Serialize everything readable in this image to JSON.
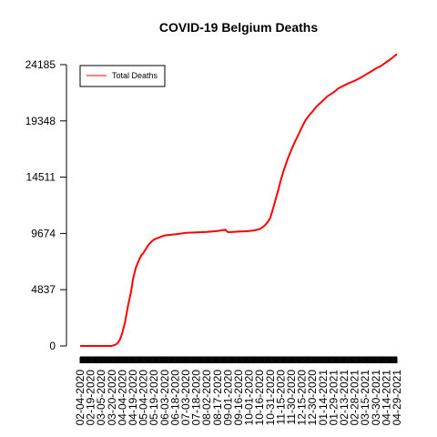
{
  "chart_data": {
    "type": "line",
    "title": "COVID-19 Belgium Deaths",
    "xlabel": "",
    "ylabel": "",
    "legend": {
      "placement": "top-left",
      "entries": [
        "Total Deaths"
      ]
    },
    "series_color": "#ff0000",
    "yticks": [
      0,
      4837,
      9674,
      14511,
      19348,
      24185
    ],
    "ylim": [
      0,
      24185
    ],
    "xlim": [
      "2020-02-04",
      "2021-04-29"
    ],
    "xtick_labels": [
      "02-04-2020",
      "02-19-2020",
      "03-05-2020",
      "03-20-2020",
      "04-04-2020",
      "04-19-2020",
      "05-04-2020",
      "05-19-2020",
      "06-03-2020",
      "06-18-2020",
      "07-03-2020",
      "07-18-2020",
      "08-02-2020",
      "08-17-2020",
      "09-01-2020",
      "09-16-2020",
      "10-01-2020",
      "10-16-2020",
      "10-31-2020",
      "11-15-2020",
      "11-30-2020",
      "12-15-2020",
      "12-30-2020",
      "01-14-2021",
      "01-29-2021",
      "02-13-2021",
      "02-28-2021",
      "03-15-2021",
      "03-30-2021",
      "04-14-2021",
      "04-29-2021"
    ],
    "series": [
      {
        "name": "Total Deaths",
        "x": [
          "2020-02-04",
          "2020-02-19",
          "2020-03-05",
          "2020-03-10",
          "2020-03-15",
          "2020-03-20",
          "2020-03-25",
          "2020-03-28",
          "2020-04-01",
          "2020-04-04",
          "2020-04-08",
          "2020-04-12",
          "2020-04-16",
          "2020-04-19",
          "2020-04-23",
          "2020-04-27",
          "2020-05-01",
          "2020-05-04",
          "2020-05-10",
          "2020-05-15",
          "2020-05-19",
          "2020-05-25",
          "2020-06-03",
          "2020-06-18",
          "2020-07-03",
          "2020-07-18",
          "2020-08-02",
          "2020-08-17",
          "2020-08-27",
          "2020-08-28",
          "2020-09-01",
          "2020-09-16",
          "2020-10-01",
          "2020-10-08",
          "2020-10-16",
          "2020-10-20",
          "2020-10-24",
          "2020-10-28",
          "2020-10-31",
          "2020-11-03",
          "2020-11-07",
          "2020-11-11",
          "2020-11-15",
          "2020-11-20",
          "2020-11-25",
          "2020-11-30",
          "2020-12-05",
          "2020-12-10",
          "2020-12-15",
          "2020-12-20",
          "2020-12-25",
          "2020-12-30",
          "2021-01-05",
          "2021-01-14",
          "2021-01-20",
          "2021-01-29",
          "2021-02-05",
          "2021-02-13",
          "2021-02-20",
          "2021-02-28",
          "2021-03-08",
          "2021-03-15",
          "2021-03-22",
          "2021-03-30",
          "2021-04-07",
          "2021-04-14",
          "2021-04-22",
          "2021-04-29"
        ],
        "y": [
          0,
          0,
          0,
          0,
          0,
          5,
          100,
          220,
          600,
          1150,
          2100,
          3450,
          4550,
          5700,
          6700,
          7300,
          7800,
          8000,
          8600,
          8950,
          9150,
          9300,
          9500,
          9600,
          9720,
          9760,
          9800,
          9880,
          9980,
          10000,
          9780,
          9830,
          9880,
          9930,
          10050,
          10200,
          10400,
          10700,
          11000,
          11600,
          12450,
          13300,
          14250,
          15250,
          16100,
          16850,
          17550,
          18150,
          18800,
          19400,
          19800,
          20150,
          20600,
          21100,
          21450,
          21800,
          22150,
          22400,
          22600,
          22800,
          23050,
          23300,
          23550,
          23850,
          24100,
          24400,
          24750,
          25100
        ]
      }
    ]
  }
}
